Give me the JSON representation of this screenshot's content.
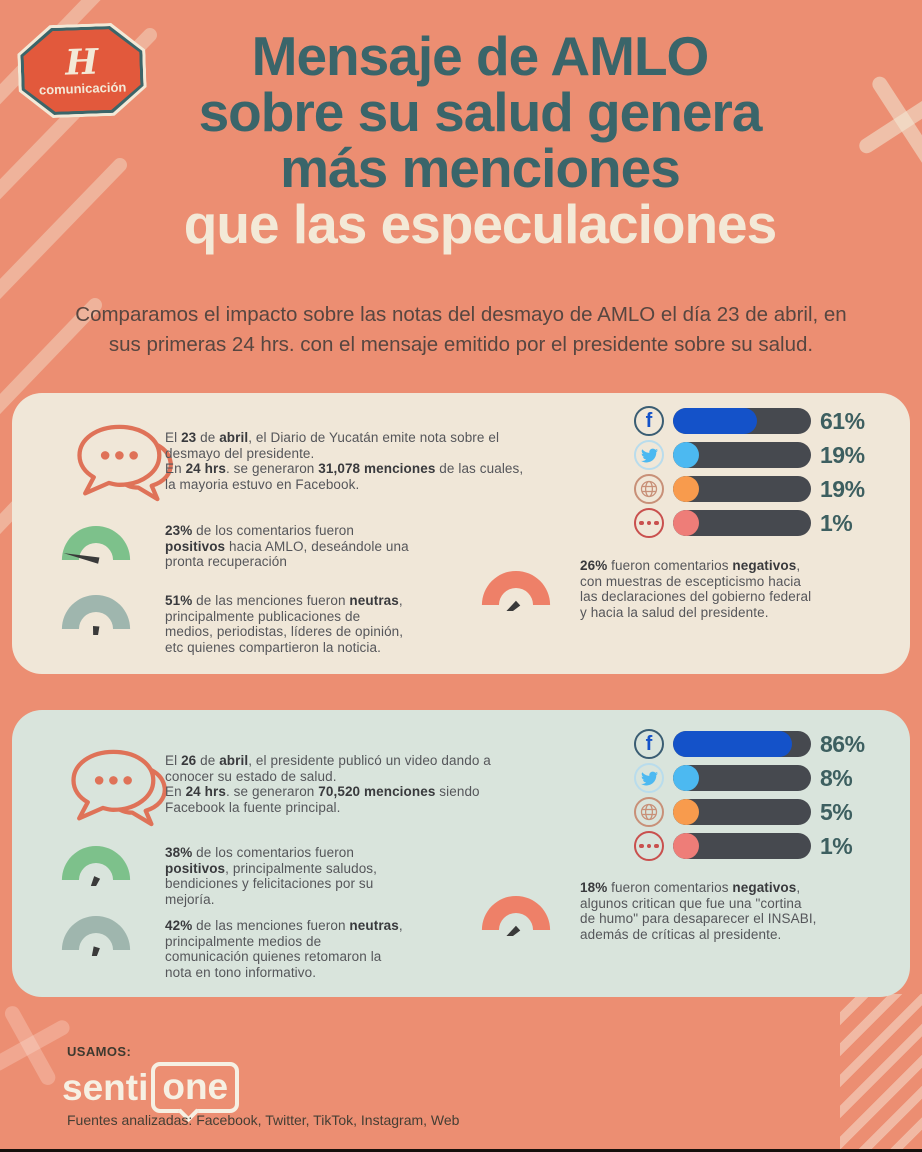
{
  "page": {
    "background": "#EC8E72"
  },
  "logo": {
    "monogram": "H",
    "label": "comunicación",
    "badge_color": "#E2593C",
    "ring_color": "#3B6569",
    "outline_color": "#F3E9D7"
  },
  "title": {
    "line1": "Mensaje de AMLO",
    "line2": "sobre su salud genera",
    "line3": "más menciones",
    "line4": "que las especulaciones",
    "teal": "#3A656A",
    "cream": "#F3E9D7"
  },
  "subtitle": {
    "line1": "Comparamos el impacto sobre las notas del desmayo de AMLO el día 23 de abril, en",
    "line2": "sus primeras 24 hrs. con el mensaje emitido por el presidente sobre su salud."
  },
  "colors": {
    "card1_bg": "#F0E7D8",
    "card2_bg": "#D9E4DC",
    "bar_track": "#46494F",
    "facebook": "#1452C9",
    "twitter": "#4CB9F1",
    "web": "#F89B4D",
    "other": "#EE7D78",
    "gauge_green": "#7DC18B",
    "gauge_gray": "#9FB6AE",
    "gauge_red": "#EE8068",
    "needle": "#3A3A3A",
    "bubble_stroke": "#DF7258",
    "pct_label": "#3D5F60"
  },
  "icons": {
    "facebook_glyph": "f"
  },
  "cards": [
    {
      "bg": "#F0E7D8",
      "intro": [
        {
          "t": "El "
        },
        {
          "t": "23",
          "b": 1
        },
        {
          "t": " de "
        },
        {
          "t": "abril",
          "b": 1
        },
        {
          "t": ", el Diario de Yucatán emite nota sobre el"
        },
        {
          "br": 1
        },
        {
          "t": "desmayo del presidente."
        },
        {
          "br": 1
        },
        {
          "t": "En "
        },
        {
          "t": "24 hrs",
          "b": 1
        },
        {
          "t": ". se generaron "
        },
        {
          "t": "31,078 menciones",
          "b": 1
        },
        {
          "t": " de las cuales,"
        },
        {
          "br": 1
        },
        {
          "t": "la mayoria estuvo en Facebook."
        }
      ],
      "positive": [
        {
          "t": "23%",
          "b": 1
        },
        {
          "t": " de los comentarios fueron"
        },
        {
          "br": 1
        },
        {
          "t": "positivos",
          "b": 1
        },
        {
          "t": " hacia AMLO, deseándole una"
        },
        {
          "br": 1
        },
        {
          "t": "pronta recuperación"
        }
      ],
      "neutral": [
        {
          "t": "51%",
          "b": 1
        },
        {
          "t": " de las menciones fueron "
        },
        {
          "t": "neutras",
          "b": 1
        },
        {
          "t": ","
        },
        {
          "br": 1
        },
        {
          "t": "principalmente publicaciones de"
        },
        {
          "br": 1
        },
        {
          "t": "medios, periodistas, líderes de opinión,"
        },
        {
          "br": 1
        },
        {
          "t": "etc quienes compartieron la noticia."
        }
      ],
      "negative": [
        {
          "t": "26%",
          "b": 1
        },
        {
          "t": " fueron comentarios "
        },
        {
          "t": "negativos",
          "b": 1
        },
        {
          "t": ","
        },
        {
          "br": 1
        },
        {
          "t": "con muestras de escepticismo hacia"
        },
        {
          "br": 1
        },
        {
          "t": "las declaraciones del gobierno federal"
        },
        {
          "br": 1
        },
        {
          "t": "y hacia la salud del presidente."
        }
      ],
      "gauges": {
        "positive_deg": 12,
        "neutral_deg": -86,
        "negative_deg": -42,
        "positive_color": "#7DC18B",
        "neutral_color": "#9FB6AE",
        "negative_color": "#EE8068"
      },
      "bars": [
        {
          "name": "Facebook",
          "pct": 61,
          "label": "61%",
          "color": "#1452C9"
        },
        {
          "name": "Twitter",
          "pct": 19,
          "label": "19%",
          "color": "#4CB9F1"
        },
        {
          "name": "Web",
          "pct": 19,
          "label": "19%",
          "color": "#F89B4D"
        },
        {
          "name": "Otros",
          "pct": 1,
          "label": "1%",
          "color": "#EE7D78"
        }
      ]
    },
    {
      "bg": "#D9E4DC",
      "intro": [
        {
          "t": "El "
        },
        {
          "t": "26",
          "b": 1
        },
        {
          "t": " de "
        },
        {
          "t": "abril",
          "b": 1
        },
        {
          "t": ", el presidente publicó un video dando a"
        },
        {
          "br": 1
        },
        {
          "t": "conocer su estado de salud."
        },
        {
          "br": 1
        },
        {
          "t": "En "
        },
        {
          "t": "24 hrs",
          "b": 1
        },
        {
          "t": ". se generaron "
        },
        {
          "t": "70,520 menciones",
          "b": 1
        },
        {
          "t": " siendo"
        },
        {
          "br": 1
        },
        {
          "t": "Facebook la fuente principal."
        }
      ],
      "positive": [
        {
          "t": "38%",
          "b": 1
        },
        {
          "t": " de los comentarios fueron"
        },
        {
          "br": 1
        },
        {
          "t": "positivos",
          "b": 1
        },
        {
          "t": ", principalmente saludos,"
        },
        {
          "br": 1
        },
        {
          "t": "bendiciones y felicitaciones por su"
        },
        {
          "br": 1
        },
        {
          "t": "mejoría."
        }
      ],
      "neutral": [
        {
          "t": "42%",
          "b": 1
        },
        {
          "t": " de las menciones fueron "
        },
        {
          "t": "neutras",
          "b": 1
        },
        {
          "t": ","
        },
        {
          "br": 1
        },
        {
          "t": "principalmente medios de"
        },
        {
          "br": 1
        },
        {
          "t": "comunicación quienes retomaron la"
        },
        {
          "br": 1
        },
        {
          "t": "nota en tono informativo."
        }
      ],
      "negative": [
        {
          "t": "18%",
          "b": 1
        },
        {
          "t": " fueron comentarios "
        },
        {
          "t": "negativos",
          "b": 1
        },
        {
          "t": ","
        },
        {
          "br": 1
        },
        {
          "t": "algunos critican que fue una \"cortina"
        },
        {
          "br": 1
        },
        {
          "t": "de humo\" para desaparecer el INSABI,"
        },
        {
          "br": 1
        },
        {
          "t": "además de críticas al presidente."
        }
      ],
      "gauges": {
        "positive_deg": -66,
        "neutral_deg": -74,
        "negative_deg": -42,
        "positive_color": "#7DC18B",
        "neutral_color": "#9FB6AE",
        "negative_color": "#EE8068"
      },
      "bars": [
        {
          "name": "Facebook",
          "pct": 86,
          "label": "86%",
          "color": "#1452C9"
        },
        {
          "name": "Twitter",
          "pct": 8,
          "label": "8%",
          "color": "#4CB9F1"
        },
        {
          "name": "Web",
          "pct": 5,
          "label": "5%",
          "color": "#F89B4D"
        },
        {
          "name": "Otros",
          "pct": 1,
          "label": "1%",
          "color": "#EE7D78"
        }
      ]
    }
  ],
  "footer": {
    "usamos_label": "USAMOS:",
    "brand_senti": "senti",
    "brand_one": "one",
    "fuentes": "Fuentes analizadas: Facebook, Twitter, TikTok, Instagram, Web"
  },
  "chart_data": [
    {
      "type": "bar",
      "orientation": "horizontal",
      "unit": "%",
      "xlim": [
        0,
        100
      ],
      "title": "El 23 de abril — nota del desmayo: 31,078 menciones en 24 hrs",
      "categories": [
        "Facebook",
        "Twitter",
        "Web",
        "Otros"
      ],
      "values": [
        61,
        19,
        19,
        1
      ],
      "sentiment": {
        "positivos_pct": 23,
        "neutras_pct": 51,
        "negativos_pct": 26
      }
    },
    {
      "type": "bar",
      "orientation": "horizontal",
      "unit": "%",
      "xlim": [
        0,
        100
      ],
      "title": "El 26 de abril — mensaje del presidente: 70,520 menciones en 24 hrs",
      "categories": [
        "Facebook",
        "Twitter",
        "Web",
        "Otros"
      ],
      "values": [
        86,
        8,
        5,
        1
      ],
      "sentiment": {
        "positivos_pct": 38,
        "neutras_pct": 42,
        "negativos_pct": 18
      }
    }
  ]
}
